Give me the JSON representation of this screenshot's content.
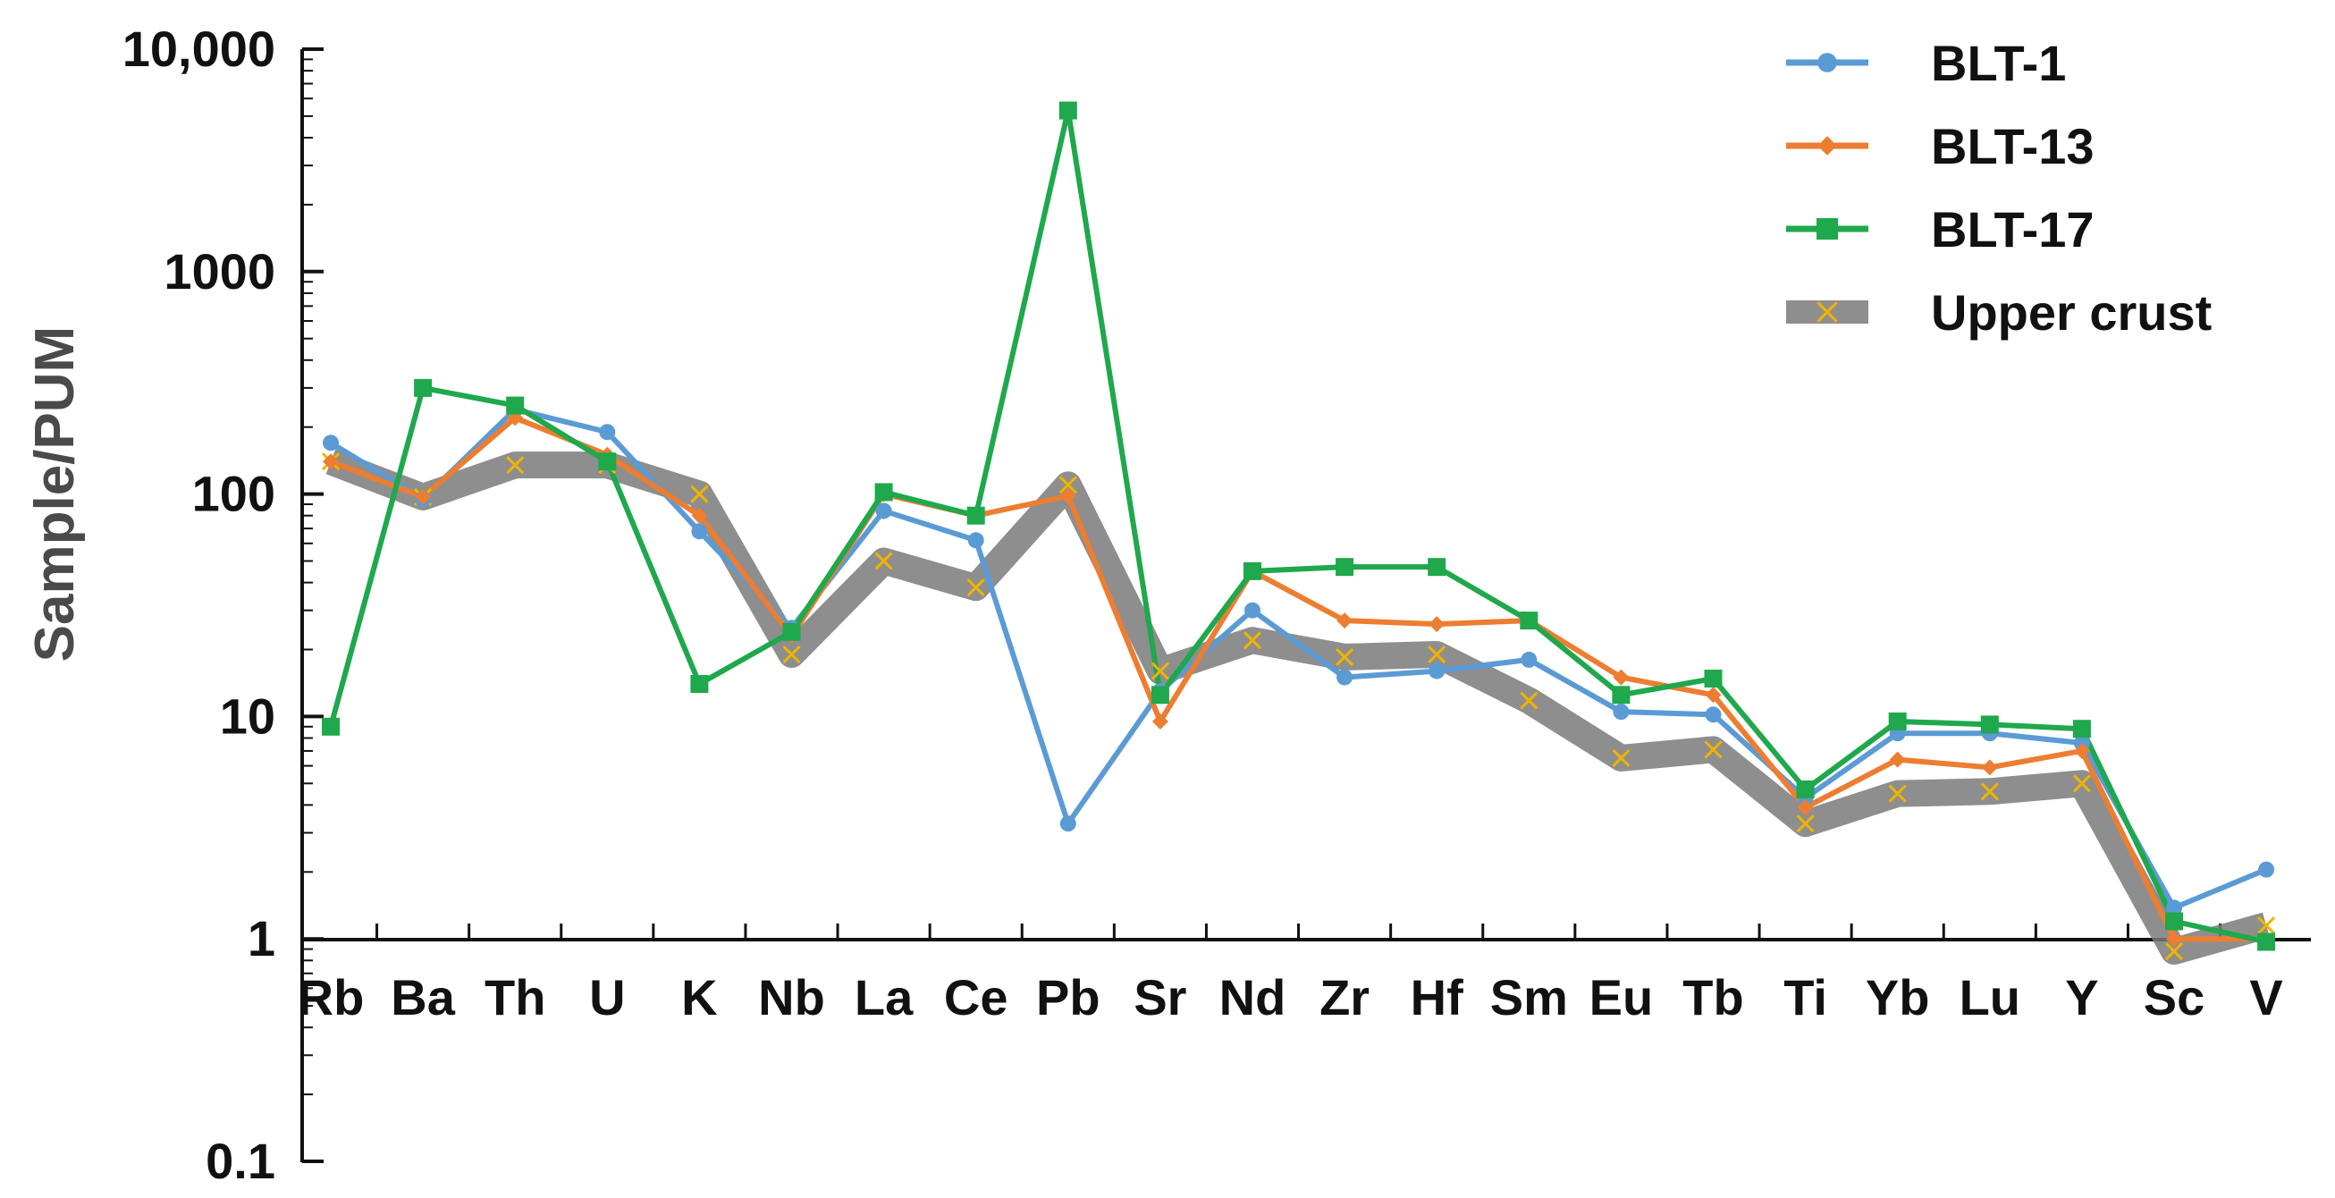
{
  "chart_data": {
    "type": "line",
    "title": "",
    "xlabel": "",
    "ylabel": "Sample/PUM",
    "yscale": "log",
    "ylim": [
      0.1,
      10000
    ],
    "yticks": [
      {
        "value": 0.1,
        "label": "0.1"
      },
      {
        "value": 1,
        "label": "1"
      },
      {
        "value": 10,
        "label": "10"
      },
      {
        "value": 100,
        "label": "100"
      },
      {
        "value": 1000,
        "label": "1000"
      },
      {
        "value": 10000,
        "label": "10,000"
      }
    ],
    "categories": [
      "Rb",
      "Ba",
      "Th",
      "U",
      "K",
      "Nb",
      "La",
      "Ce",
      "Pb",
      "Sr",
      "Nd",
      "Zr",
      "Hf",
      "Sm",
      "Eu",
      "Tb",
      "Ti",
      "Yb",
      "Lu",
      "Y",
      "Sc",
      "V"
    ],
    "legend_position": "top-right",
    "grid": false,
    "series": [
      {
        "name": "BLT-1",
        "color": "#5b9bd5",
        "marker": "circle",
        "values": [
          170,
          95,
          240,
          190,
          68,
          25,
          84,
          62,
          3.3,
          13,
          30,
          15,
          16,
          18,
          10.5,
          10.2,
          4.3,
          8.4,
          8.4,
          7.6,
          1.38,
          2.05
        ]
      },
      {
        "name": "BLT-13",
        "color": "#ed7d31",
        "marker": "diamond",
        "values": [
          140,
          97,
          220,
          150,
          80,
          23,
          100,
          80,
          98,
          9.5,
          45,
          27,
          26,
          27,
          15,
          12.5,
          3.9,
          6.4,
          5.9,
          7.0,
          1.0,
          1.0
        ]
      },
      {
        "name": "BLT-17",
        "color": "#1fa84c",
        "marker": "square",
        "values": [
          9,
          300,
          250,
          140,
          14,
          24,
          102,
          80,
          5300,
          12.5,
          45,
          47,
          47,
          27,
          12.5,
          14.8,
          4.7,
          9.5,
          9.2,
          8.8,
          1.2,
          0.97
        ]
      },
      {
        "name": "Upper crust",
        "color": "#7a7a7a",
        "marker": "x",
        "marker_color": "#f0b400",
        "values": [
          140,
          97,
          135,
          135,
          100,
          19,
          50,
          38,
          110,
          16,
          22,
          18.5,
          19,
          11.8,
          6.5,
          7.1,
          3.3,
          4.5,
          4.6,
          5.0,
          0.88,
          1.15
        ]
      }
    ]
  }
}
